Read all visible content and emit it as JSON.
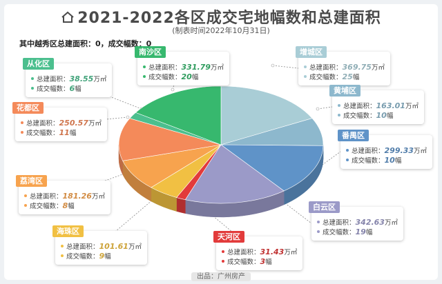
{
  "header": {
    "title": "2021-2022各区成交宅地幅数和总建面积",
    "subtitle": "(制表时间2022年10月31日)",
    "note": "其中越秀区总建面积：0，成交幅数：0",
    "source": "出品：广州房产"
  },
  "labels": {
    "area_label": "总建面积：",
    "count_label": "成交幅数：",
    "area_unit": "万㎡",
    "count_unit": "幅"
  },
  "chart_data": {
    "type": "pie",
    "title": "2021-2022各区成交宅地幅数和总建面积",
    "subtitle": "(制表时间2022年10月31日)",
    "slices": [
      {
        "name": "增城区",
        "area": 369.75,
        "count": 25,
        "color": "#a9cdd6"
      },
      {
        "name": "黄埔区",
        "area": 163.01,
        "count": 10,
        "color": "#8db8cd"
      },
      {
        "name": "番禺区",
        "area": 299.33,
        "count": 10,
        "color": "#5f93c8"
      },
      {
        "name": "白云区",
        "area": 342.63,
        "count": 19,
        "color": "#9b9ac8"
      },
      {
        "name": "天河区",
        "area": 31.43,
        "count": 3,
        "color": "#e23b3b"
      },
      {
        "name": "海珠区",
        "area": 101.61,
        "count": 9,
        "color": "#f1c043"
      },
      {
        "name": "荔湾区",
        "area": 181.26,
        "count": 8,
        "color": "#f7a34e"
      },
      {
        "name": "花都区",
        "area": 250.57,
        "count": 11,
        "color": "#f48a5a"
      },
      {
        "name": "从化区",
        "area": 38.55,
        "count": 6,
        "color": "#4bbf8e"
      },
      {
        "name": "南沙区",
        "area": 331.79,
        "count": 20,
        "color": "#37b86e"
      }
    ]
  }
}
